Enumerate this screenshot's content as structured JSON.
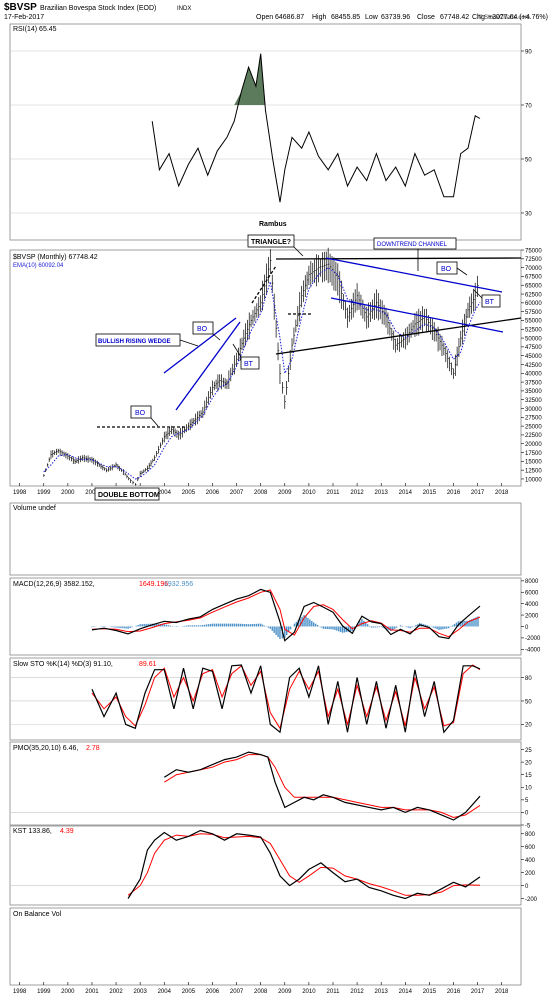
{
  "header": {
    "symbol": "$BVSP",
    "name": "Brazilian Bovespa Stock Index (EOD)",
    "exchange": "INDX",
    "date": "17-Feb-2017",
    "brand": "© StockCharts.com",
    "open_label": "Open",
    "open": "64686.87",
    "high_label": "High",
    "high": "68455.85",
    "low_label": "Low",
    "low": "63739.96",
    "close_label": "Close",
    "close": "67748.42",
    "chg_label": "Chg",
    "chg": "+3077.64 (+4.76%)"
  },
  "colors": {
    "price": "#000000",
    "ema": "#1c1cd6",
    "trend": "#0000cc",
    "signal": "#ff0000",
    "histogram": "#4a90c8",
    "rsi_fill": "#5c7a5c",
    "grid": "#c8c8c8",
    "panel_border": "#888888"
  },
  "annotations": {
    "rambus": "Rambus",
    "triangle": "TRIANGLE?",
    "downtrend_channel": "DOWNTREND CHANNEL",
    "bullish_wedge": "BULLISH RISING WEDGE",
    "bo": "BO",
    "bt": "BT",
    "double_bottom": "DOUBLE BOTTOM"
  },
  "chart_data": [
    {
      "panel": "rsi",
      "type": "line",
      "label": "RSI(14) 65.45",
      "ylim": [
        20,
        100
      ],
      "y_ticks": [
        "90",
        "70",
        "50",
        "30"
      ],
      "x": [
        2003.5,
        2003.8,
        2004.2,
        2004.6,
        2005.0,
        2005.4,
        2005.8,
        2006.2,
        2006.6,
        2006.9,
        2007.2,
        2007.5,
        2007.8,
        2008.0,
        2008.2,
        2008.5,
        2008.8,
        2009.0,
        2009.3,
        2009.7,
        2010.0,
        2010.4,
        2010.8,
        2011.2,
        2011.6,
        2012.0,
        2012.4,
        2012.8,
        2013.2,
        2013.6,
        2014.0,
        2014.4,
        2014.8,
        2015.2,
        2015.6,
        2016.0,
        2016.3,
        2016.6,
        2016.9,
        2017.1
      ],
      "values": [
        64,
        46,
        52,
        40,
        48,
        54,
        44,
        53,
        58,
        64,
        75,
        84,
        77,
        89,
        68,
        50,
        34,
        46,
        58,
        54,
        60,
        51,
        46,
        52,
        40,
        47,
        42,
        52,
        42,
        47,
        40,
        52,
        44,
        46,
        36,
        36,
        52,
        54,
        66,
        65
      ]
    },
    {
      "panel": "price",
      "type": "line",
      "label": "$BVSP (Monthly) 67748.42",
      "ema_label": "EMA(10) 60092.04",
      "ylim": [
        8000,
        75000
      ],
      "y_ticks": [
        "75000",
        "72500",
        "70000",
        "67500",
        "65000",
        "62500",
        "60000",
        "57500",
        "55000",
        "52500",
        "50000",
        "47500",
        "45000",
        "42500",
        "40000",
        "37500",
        "35000",
        "32500",
        "30000",
        "27500",
        "25000",
        "22500",
        "20000",
        "17500",
        "15000",
        "12500",
        "10000"
      ],
      "x_ticks": [
        "1998",
        "1999",
        "2000",
        "2001",
        "2002",
        "2003",
        "2004",
        "2005",
        "2006",
        "2007",
        "2008",
        "2009",
        "2010",
        "2011",
        "2012",
        "2013",
        "2014",
        "2015",
        "2016",
        "2017",
        "2018"
      ],
      "x": [
        1999.0,
        1999.3,
        1999.6,
        2000.0,
        2000.3,
        2000.6,
        2001.0,
        2001.3,
        2001.6,
        2002.0,
        2002.3,
        2002.6,
        2002.8,
        2003.0,
        2003.3,
        2003.6,
        2004.0,
        2004.3,
        2004.6,
        2005.0,
        2005.3,
        2005.6,
        2006.0,
        2006.3,
        2006.6,
        2007.0,
        2007.3,
        2007.6,
        2008.0,
        2008.4,
        2008.8,
        2009.0,
        2009.3,
        2009.7,
        2010.0,
        2010.4,
        2010.8,
        2011.2,
        2011.6,
        2012.0,
        2012.4,
        2012.8,
        2013.2,
        2013.6,
        2014.0,
        2014.4,
        2014.8,
        2015.2,
        2015.6,
        2016.0,
        2016.3,
        2016.6,
        2016.9,
        2017.1
      ],
      "values": [
        11000,
        17000,
        18000,
        16500,
        15000,
        16000,
        15500,
        14000,
        12500,
        14000,
        12000,
        9500,
        8500,
        11500,
        13000,
        16000,
        22000,
        24000,
        22500,
        25000,
        27000,
        29000,
        36000,
        38000,
        37000,
        44000,
        50000,
        55000,
        60000,
        72000,
        40000,
        32000,
        48000,
        62000,
        68000,
        70000,
        71000,
        67000,
        56000,
        62000,
        56000,
        60000,
        56000,
        48000,
        50000,
        54000,
        56000,
        52000,
        47000,
        40000,
        50000,
        58000,
        62000,
        67748
      ],
      "ema": [
        12000,
        14000,
        16500,
        17000,
        16000,
        15500,
        15500,
        14500,
        13500,
        13500,
        12500,
        11000,
        10000,
        10500,
        12000,
        14000,
        19000,
        22000,
        23000,
        24000,
        26000,
        28000,
        33000,
        36000,
        37000,
        42000,
        47000,
        52000,
        57000,
        66000,
        50000,
        40000,
        44000,
        56000,
        64000,
        68000,
        70000,
        68000,
        61000,
        60000,
        58000,
        58000,
        57000,
        52000,
        50000,
        52000,
        54000,
        53000,
        49000,
        44000,
        46000,
        53000,
        58000,
        60092
      ]
    },
    {
      "panel": "volume",
      "type": "bar",
      "label": "Volume undef"
    },
    {
      "panel": "macd",
      "type": "line",
      "label": "MACD(12,26,9) 3582.152,",
      "signal_label": "1649.196,",
      "hist_label": "1932.956",
      "ylim": [
        -5000,
        8500
      ],
      "y_ticks": [
        "8000",
        "6000",
        "4000",
        "2000",
        "0",
        "-2000",
        "-4000"
      ],
      "x": [
        2001.0,
        2001.5,
        2002.0,
        2002.5,
        2003.0,
        2003.5,
        2004.0,
        2004.5,
        2005.0,
        2005.5,
        2006.0,
        2006.5,
        2007.0,
        2007.5,
        2008.0,
        2008.4,
        2008.8,
        2009.0,
        2009.4,
        2009.8,
        2010.2,
        2010.6,
        2011.0,
        2011.4,
        2011.8,
        2012.2,
        2012.6,
        2013.0,
        2013.4,
        2013.8,
        2014.2,
        2014.6,
        2015.0,
        2015.4,
        2015.8,
        2016.2,
        2016.6,
        2017.1
      ],
      "values": [
        -600,
        -300,
        -700,
        -1300,
        -400,
        300,
        900,
        700,
        1300,
        1700,
        3000,
        3900,
        4800,
        5400,
        6500,
        6000,
        800,
        -2500,
        -1000,
        3500,
        4200,
        3400,
        2500,
        100,
        -1200,
        1800,
        800,
        500,
        -1400,
        -500,
        -1300,
        300,
        -200,
        -1800,
        -2100,
        300,
        1800,
        3582
      ],
      "signal": [
        -500,
        -400,
        -500,
        -900,
        -800,
        -200,
        500,
        800,
        1100,
        1500,
        2500,
        3400,
        4300,
        5000,
        6000,
        6400,
        3000,
        -500,
        -1500,
        1500,
        3500,
        3800,
        3000,
        1200,
        -400,
        500,
        1000,
        600,
        -600,
        -700,
        -1000,
        -300,
        -300,
        -1200,
        -1800,
        -600,
        800,
        1649
      ]
    },
    {
      "panel": "sto",
      "type": "line",
      "label": "Slow STO %K(14) %D(3) 91.10,",
      "d_label": "89.61",
      "ylim": [
        0,
        105
      ],
      "y_ticks": [
        "80",
        "50",
        "20"
      ],
      "x": [
        2001.0,
        2001.5,
        2002.0,
        2002.4,
        2002.8,
        2003.2,
        2003.6,
        2004.0,
        2004.4,
        2004.8,
        2005.2,
        2005.6,
        2006.0,
        2006.4,
        2006.8,
        2007.2,
        2007.6,
        2008.0,
        2008.4,
        2008.8,
        2009.2,
        2009.6,
        2010.0,
        2010.4,
        2010.8,
        2011.2,
        2011.6,
        2012.0,
        2012.4,
        2012.8,
        2013.2,
        2013.6,
        2014.0,
        2014.4,
        2014.8,
        2015.2,
        2015.6,
        2016.0,
        2016.4,
        2016.8,
        2017.1
      ],
      "values": [
        65,
        30,
        60,
        20,
        15,
        60,
        90,
        90,
        40,
        92,
        40,
        92,
        88,
        40,
        95,
        96,
        60,
        95,
        20,
        10,
        80,
        92,
        55,
        95,
        20,
        75,
        10,
        80,
        20,
        75,
        15,
        70,
        10,
        90,
        30,
        75,
        10,
        25,
        95,
        95,
        91
      ],
      "d": [
        60,
        40,
        55,
        30,
        18,
        45,
        80,
        92,
        55,
        80,
        50,
        85,
        90,
        55,
        85,
        95,
        70,
        88,
        35,
        15,
        65,
        88,
        65,
        88,
        30,
        65,
        20,
        70,
        30,
        68,
        25,
        62,
        18,
        80,
        40,
        68,
        18,
        22,
        85,
        96,
        90
      ]
    },
    {
      "panel": "pmo",
      "type": "line",
      "label": "PMO(35,20,10) 6.46,",
      "signal_label": "2.78",
      "ylim": [
        -5,
        28
      ],
      "y_ticks": [
        "25",
        "20",
        "15",
        "10",
        "5",
        "0",
        "-5"
      ],
      "x": [
        2004.0,
        2004.5,
        2005.0,
        2005.5,
        2006.0,
        2006.5,
        2007.0,
        2007.5,
        2008.0,
        2008.3,
        2008.6,
        2009.0,
        2009.4,
        2009.8,
        2010.2,
        2010.6,
        2011.0,
        2011.5,
        2012.0,
        2012.5,
        2013.0,
        2013.5,
        2014.0,
        2014.5,
        2015.0,
        2015.5,
        2016.0,
        2016.5,
        2017.1
      ],
      "values": [
        14,
        17,
        16,
        17,
        19,
        21,
        22,
        24,
        23,
        22,
        12,
        2,
        4,
        6,
        5,
        7,
        6,
        4,
        3,
        2,
        1,
        2,
        0,
        2,
        1,
        -1,
        -3,
        0,
        6.46
      ],
      "signal": [
        12,
        15,
        16,
        17,
        18,
        20,
        21,
        23,
        23,
        22,
        18,
        10,
        6,
        6,
        6,
        6,
        6,
        5,
        4,
        3,
        2,
        2,
        1,
        1,
        1,
        0,
        -2,
        -1,
        2.78
      ]
    },
    {
      "panel": "kst",
      "type": "line",
      "label": "KST 133.86,",
      "signal_label": "4.39",
      "ylim": [
        -300,
        920
      ],
      "y_ticks": [
        "800",
        "600",
        "400",
        "200",
        "0",
        "-200"
      ],
      "x": [
        2002.5,
        2003.0,
        2003.3,
        2003.6,
        2004.0,
        2004.5,
        2005.0,
        2005.5,
        2006.0,
        2006.5,
        2007.0,
        2007.5,
        2008.0,
        2008.4,
        2008.8,
        2009.2,
        2009.6,
        2010.0,
        2010.5,
        2011.0,
        2011.5,
        2012.0,
        2012.5,
        2013.0,
        2013.5,
        2014.0,
        2014.5,
        2015.0,
        2015.5,
        2016.0,
        2016.5,
        2017.1
      ],
      "values": [
        -200,
        100,
        550,
        700,
        820,
        700,
        760,
        850,
        800,
        700,
        800,
        780,
        750,
        500,
        150,
        0,
        100,
        250,
        350,
        200,
        60,
        100,
        -30,
        -80,
        -150,
        -200,
        -120,
        -150,
        -50,
        50,
        -20,
        134
      ],
      "signal": [
        -150,
        0,
        200,
        500,
        700,
        780,
        760,
        800,
        790,
        740,
        750,
        760,
        740,
        650,
        400,
        150,
        50,
        150,
        280,
        270,
        150,
        100,
        30,
        -20,
        -80,
        -150,
        -150,
        -140,
        -100,
        0,
        10,
        4
      ]
    },
    {
      "panel": "obv",
      "type": "line",
      "label": "On Balance Vol"
    }
  ]
}
